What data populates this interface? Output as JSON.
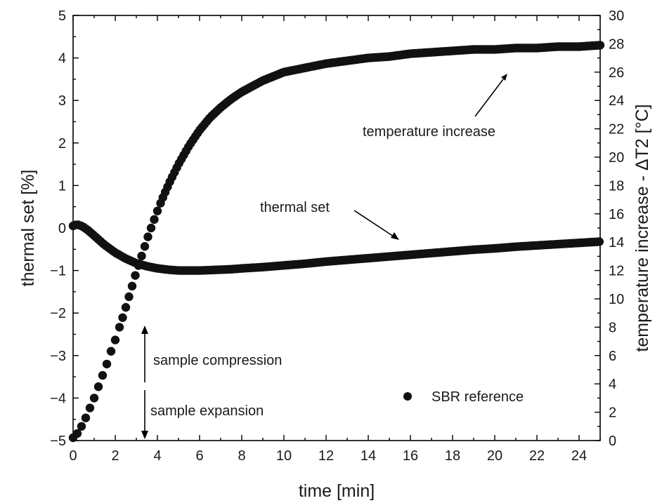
{
  "chart_data": {
    "type": "scatter",
    "xlabel": "time [min]",
    "ylabel": "thermal set [%]",
    "y2label": "temperature increase - ΔT2 [°C]",
    "xlim": [
      0,
      25
    ],
    "ylim": [
      -5,
      5
    ],
    "y2lim": [
      0,
      30
    ],
    "xticks": [
      "0",
      "2",
      "4",
      "6",
      "8",
      "10",
      "12",
      "14",
      "16",
      "18",
      "20",
      "22",
      "24"
    ],
    "yticks": [
      "−5",
      "−4",
      "−3",
      "−2",
      "−1",
      "0",
      "1",
      "2",
      "3",
      "4",
      "5"
    ],
    "y2ticks": [
      "0",
      "2",
      "4",
      "6",
      "8",
      "10",
      "12",
      "14",
      "16",
      "18",
      "20",
      "22",
      "24",
      "26",
      "28",
      "30"
    ],
    "legend": {
      "label": "SBR reference",
      "position": "bottom-right"
    },
    "series": [
      {
        "name": "thermal set",
        "axis": "left",
        "x": [
          0,
          0.1,
          0.2,
          0.3,
          0.5,
          0.7,
          1.0,
          1.5,
          2.0,
          2.5,
          3.0,
          3.5,
          4.0,
          4.5,
          5.0,
          5.5,
          6.0,
          6.5,
          7.0,
          7.5,
          8.0,
          9.0,
          10.0,
          11.0,
          12.0,
          13.0,
          14.0,
          15.0,
          16.0,
          17.0,
          18.0,
          19.0,
          20.0,
          21.0,
          22.0,
          23.0,
          24.0,
          25.0
        ],
        "y": [
          0.05,
          0.07,
          0.08,
          0.07,
          0.02,
          -0.05,
          -0.18,
          -0.4,
          -0.58,
          -0.72,
          -0.83,
          -0.9,
          -0.95,
          -0.98,
          -1.0,
          -1.0,
          -1.0,
          -0.99,
          -0.98,
          -0.97,
          -0.95,
          -0.92,
          -0.88,
          -0.84,
          -0.79,
          -0.75,
          -0.71,
          -0.67,
          -0.63,
          -0.59,
          -0.55,
          -0.51,
          -0.48,
          -0.44,
          -0.41,
          -0.38,
          -0.35,
          -0.32
        ]
      },
      {
        "name": "temperature increase",
        "axis": "right",
        "x": [
          0,
          0.2,
          0.4,
          0.6,
          0.8,
          1.0,
          1.2,
          1.4,
          1.6,
          1.8,
          2.0,
          2.2,
          2.4,
          2.6,
          2.8,
          3.0,
          3.2,
          3.4,
          3.6,
          3.8,
          4.0,
          4.3,
          4.6,
          5.0,
          5.5,
          6.0,
          6.5,
          7.0,
          7.5,
          8.0,
          8.5,
          9.0,
          9.5,
          10.0,
          11.0,
          12.0,
          13.0,
          14.0,
          15.0,
          16.0,
          17.0,
          18.0,
          19.0,
          20.0,
          21.0,
          22.0,
          23.0,
          24.0,
          25.0
        ],
        "y": [
          0.2,
          0.5,
          1.0,
          1.6,
          2.3,
          3.0,
          3.8,
          4.6,
          5.4,
          6.3,
          7.1,
          8.0,
          8.9,
          9.9,
          10.9,
          11.9,
          12.8,
          13.7,
          14.6,
          15.4,
          16.2,
          17.3,
          18.3,
          19.5,
          20.8,
          21.9,
          22.8,
          23.5,
          24.1,
          24.6,
          25.0,
          25.4,
          25.7,
          26.0,
          26.3,
          26.6,
          26.8,
          27.0,
          27.1,
          27.3,
          27.4,
          27.5,
          27.6,
          27.6,
          27.7,
          27.7,
          27.8,
          27.8,
          27.9
        ]
      }
    ],
    "annotations": [
      {
        "text": "temperature increase",
        "target": "temperature increase"
      },
      {
        "text": "thermal set",
        "target": "thermal set"
      },
      {
        "text": "sample compression",
        "direction": "up"
      },
      {
        "text": "sample expansion",
        "direction": "down"
      }
    ]
  }
}
